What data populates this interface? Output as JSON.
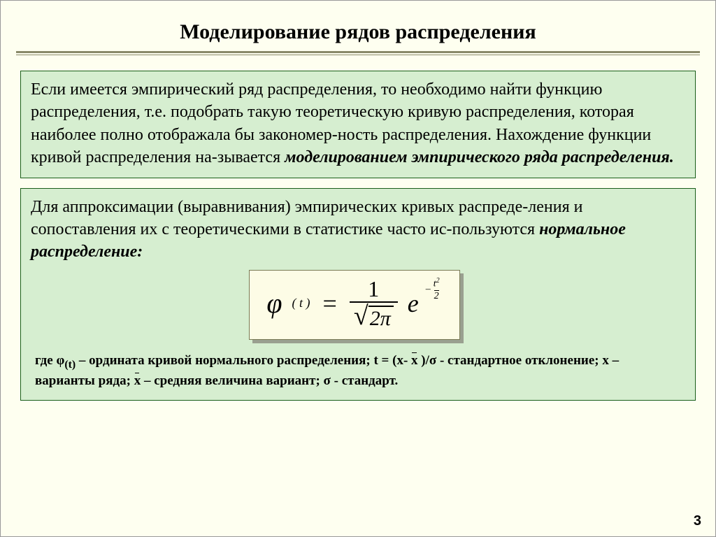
{
  "title": "Моделирование рядов распределения",
  "box1": {
    "line1": "Если имеется эмпирический ряд распределения, то необходимо найти функцию распределения, т.е. подобрать такую теоретическую кривую распределения, которая наиболее полно отображала бы закономер-ность распределения. Нахождение функции кривой распределения на-зывается ",
    "em": "моделированием эмпирического ряда распределения."
  },
  "box2": {
    "line1": "Для аппроксимации (выравнивания) эмпирических кривых распреде-ления и сопоставления их с теоретическими в статистике часто ис-пользуются ",
    "em": "нормальное распределение:"
  },
  "formula": {
    "phi": "φ",
    "arg": "( t )",
    "eq": "=",
    "num": "1",
    "two": "2",
    "pi": "π",
    "e": "e",
    "minus": "–",
    "t": "t",
    "sq": "2",
    "den2": "2"
  },
  "legend": {
    "l1a": "где φ",
    "l1sub": "(t)",
    "l1b": " – ордината кривой нормального распределения; t = (x- ",
    "l1xbar": "x",
    "l1c": " )/σ - стандартное отклонение; x – варианты ряда; ",
    "l1xbar2": "x",
    "l1d": " – средняя величина вариант; σ - стандарт."
  },
  "pageNumber": "3",
  "colors": {
    "page_bg": "#fefff0",
    "box_bg": "#d6eed0",
    "box_border": "#1a5e1a",
    "formula_bg": "#fdfce6",
    "formula_border": "#7a7a55",
    "shadow": "#9aa090",
    "rule": "#8a8a6a"
  }
}
